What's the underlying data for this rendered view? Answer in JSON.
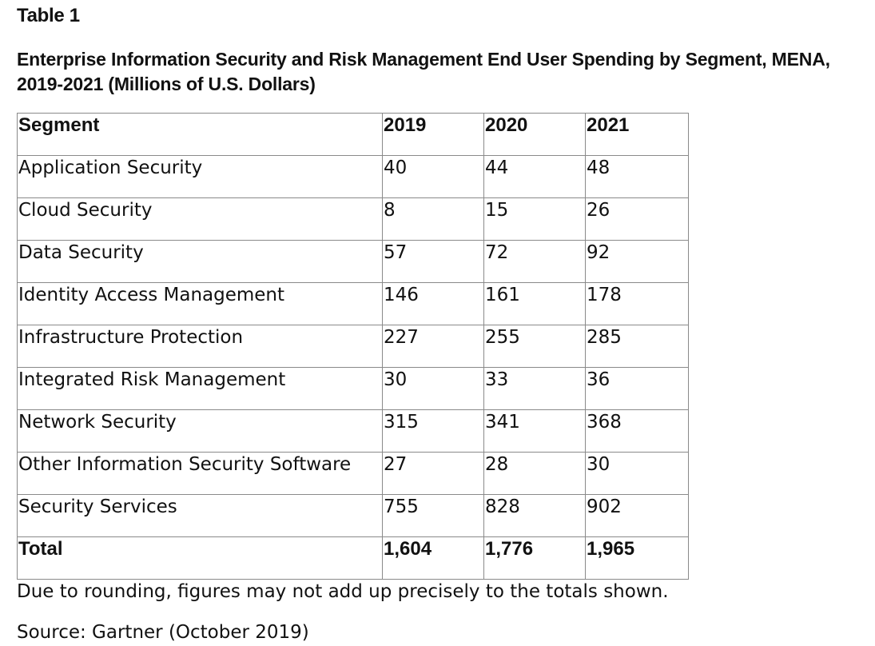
{
  "table_label": "Table 1",
  "caption": "Enterprise Information Security and Risk Management End User Spending by Segment, MENA, 2019-2021 (Millions of U.S. Dollars)",
  "table": {
    "headers": [
      "Segment",
      "2019",
      "2020",
      "2021"
    ],
    "rows": [
      [
        "Application Security",
        "40",
        "44",
        "48"
      ],
      [
        "Cloud Security",
        "8",
        "15",
        "26"
      ],
      [
        "Data Security",
        "57",
        "72",
        "92"
      ],
      [
        "Identity Access Management",
        "146",
        "161",
        "178"
      ],
      [
        "Infrastructure Protection",
        "227",
        "255",
        "285"
      ],
      [
        "Integrated Risk Management",
        "30",
        "33",
        "36"
      ],
      [
        "Network Security",
        "315",
        "341",
        "368"
      ],
      [
        "Other Information Security Software",
        "27",
        "28",
        "30"
      ],
      [
        "Security Services",
        "755",
        "828",
        "902"
      ]
    ],
    "total": [
      "Total",
      "1,604",
      "1,776",
      "1,965"
    ]
  },
  "note": "Due to rounding, figures may not add up precisely to the totals shown.",
  "source": "Source: Gartner (October 2019)"
}
